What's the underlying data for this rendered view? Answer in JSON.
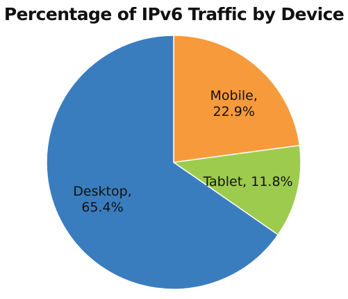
{
  "chart_data": {
    "type": "pie",
    "title": "Percentage of IPv6 Traffic by Device",
    "slices": [
      {
        "name": "Mobile",
        "value": 22.9,
        "label_lines": [
          "Mobile,",
          "22.9%"
        ],
        "color": "#f79a3b"
      },
      {
        "name": "Tablet",
        "value": 11.8,
        "label_lines": [
          "Tablet, 11.8%"
        ],
        "color": "#9dcb4d"
      },
      {
        "name": "Desktop",
        "value": 65.4,
        "label_lines": [
          "Desktop,",
          "65.4%"
        ],
        "color": "#3a7dbf"
      }
    ],
    "start": "12 o'clock",
    "direction": "clockwise",
    "legend": "none"
  }
}
